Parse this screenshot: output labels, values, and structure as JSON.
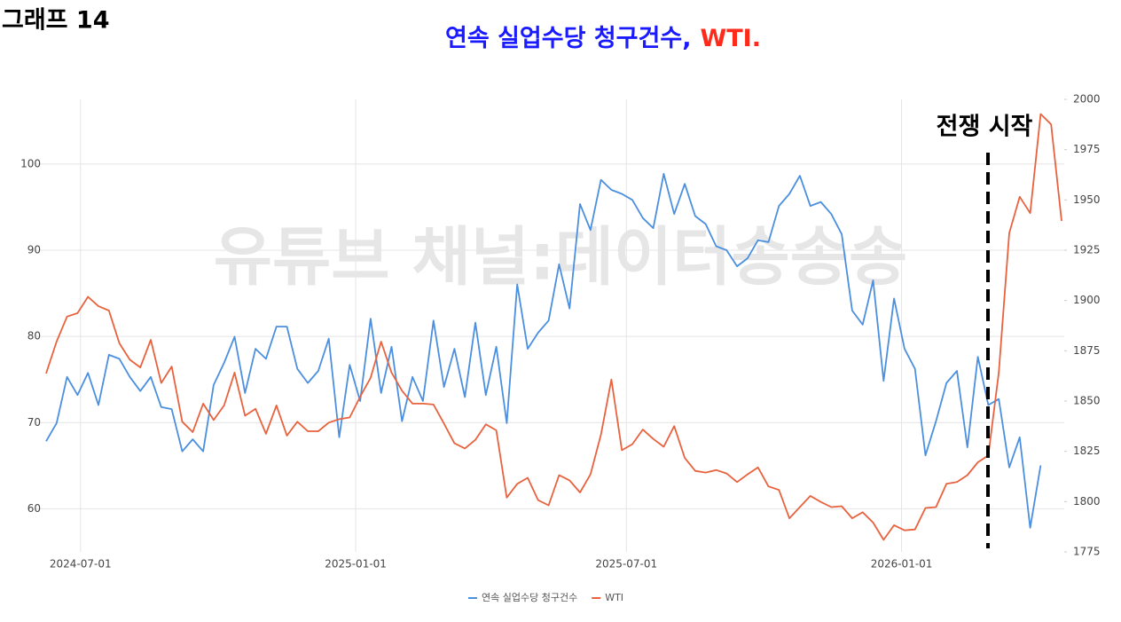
{
  "header": "그래프 14",
  "watermark": "유튜브 채널:데이터송송송",
  "annotation": "전쟁 시작",
  "chart_data": {
    "type": "line",
    "title": [
      {
        "text": "연속 실업수당 청구건수,",
        "color": "#1a1aff"
      },
      {
        "text": "WTI.",
        "color": "#ff2a1a"
      }
    ],
    "x": [
      "2024-06-08",
      "2024-06-15",
      "2024-06-22",
      "2024-06-29",
      "2024-07-06",
      "2024-07-13",
      "2024-07-20",
      "2024-07-27",
      "2024-08-03",
      "2024-08-10",
      "2024-08-17",
      "2024-08-24",
      "2024-08-31",
      "2024-09-07",
      "2024-09-14",
      "2024-09-21",
      "2024-09-28",
      "2024-10-05",
      "2024-10-12",
      "2024-10-19",
      "2024-10-26",
      "2024-11-02",
      "2024-11-09",
      "2024-11-16",
      "2024-11-23",
      "2024-11-30",
      "2024-12-07",
      "2024-12-14",
      "2024-12-21",
      "2024-12-28",
      "2025-01-04",
      "2025-01-11",
      "2025-01-18",
      "2025-01-25",
      "2025-02-01",
      "2025-02-08",
      "2025-02-15",
      "2025-02-22",
      "2025-03-01",
      "2025-03-08",
      "2025-03-15",
      "2025-03-22",
      "2025-03-29",
      "2025-04-05",
      "2025-04-12",
      "2025-04-19",
      "2025-04-26",
      "2025-05-03",
      "2025-05-10",
      "2025-05-17",
      "2025-05-24",
      "2025-05-31",
      "2025-06-07",
      "2025-06-14",
      "2025-06-21",
      "2025-06-28",
      "2025-07-05",
      "2025-07-12",
      "2025-07-19",
      "2025-07-26",
      "2025-08-02",
      "2025-08-09",
      "2025-08-16",
      "2025-08-23",
      "2025-08-30",
      "2025-09-06",
      "2025-09-13",
      "2025-09-20",
      "2025-09-27",
      "2025-10-04",
      "2025-10-11",
      "2025-10-18",
      "2025-10-25",
      "2025-11-01",
      "2025-11-08",
      "2025-11-15",
      "2025-11-22",
      "2025-11-29",
      "2025-12-06",
      "2025-12-13",
      "2025-12-20",
      "2025-12-27",
      "2026-01-03",
      "2026-01-10",
      "2026-01-17",
      "2026-01-24",
      "2026-01-31",
      "2026-02-07",
      "2026-02-14",
      "2026-02-21",
      "2026-02-28",
      "2026-03-07",
      "2026-03-14",
      "2026-03-21",
      "2026-03-28",
      "2026-04-04",
      "2026-04-11",
      "2026-04-18"
    ],
    "series": [
      {
        "name": "연속 실업수당 청구건수",
        "color": "#4a8fe0",
        "axis": "y2",
        "values": [
          1830,
          1839,
          1862,
          1853,
          1864,
          1848,
          1873,
          1871,
          1862,
          1855,
          1862,
          1847,
          1846,
          1825,
          1831,
          1825,
          1858,
          1869,
          1882,
          1854,
          1876,
          1871,
          1887,
          1887,
          1866,
          1859,
          1865,
          1881,
          1832,
          1868,
          1850,
          1891,
          1854,
          1877,
          1840,
          1862,
          1850,
          1890,
          1857,
          1876,
          1852,
          1889,
          1853,
          1877,
          1839,
          1908,
          1876,
          1884,
          1890,
          1918,
          1896,
          1948,
          1935,
          1960,
          1955,
          1953,
          1950,
          1941,
          1936,
          1963,
          1943,
          1958,
          1942,
          1938,
          1927,
          1925,
          1917,
          1921,
          1930,
          1929,
          1947,
          1953,
          1962,
          1947,
          1949,
          1943,
          1933,
          1895,
          1888,
          1910,
          1860,
          1901,
          1876,
          1866,
          1823,
          1840,
          1859,
          1865,
          1827,
          1872,
          1848,
          1851,
          1817,
          1832,
          1787,
          1818,
          null,
          null
        ]
      },
      {
        "name": "WTI",
        "color": "#e8623e",
        "values": [
          75.7,
          79.4,
          82.3,
          82.7,
          84.6,
          83.5,
          83,
          79.2,
          77.3,
          76.4,
          79.6,
          74.6,
          76.5,
          70.1,
          68.9,
          72.2,
          70.3,
          72,
          75.8,
          70.8,
          71.6,
          68.7,
          72,
          68.5,
          70.1,
          69,
          69,
          70,
          70.4,
          70.6,
          73,
          75.2,
          79.4,
          75.8,
          73.7,
          72.2,
          72.2,
          72.1,
          69.9,
          67.6,
          67,
          68,
          69.8,
          69.1,
          61.3,
          62.9,
          63.6,
          61,
          60.4,
          63.9,
          63.3,
          61.9,
          64,
          68.6,
          75,
          66.8,
          67.5,
          69.2,
          68.1,
          67.2,
          69.6,
          65.9,
          64.4,
          64.2,
          64.5,
          64.1,
          63.1,
          64,
          64.8,
          62.6,
          62.2,
          58.9,
          60.2,
          61.5,
          60.8,
          60.2,
          60.3,
          58.9,
          59.6,
          58.4,
          56.4,
          58.1,
          57.5,
          57.6,
          60.1,
          60.2,
          62.9,
          63.1,
          63.9,
          65.4,
          66.2,
          75.8,
          92,
          96.2,
          94.3,
          105.8,
          104.6,
          93.4
        ]
      }
    ],
    "xlim": [
      "2024-06-08",
      "2026-04-18"
    ],
    "xticks": [
      "2024-07-01",
      "2025-01-01",
      "2025-07-01",
      "2026-01-01"
    ],
    "ylim": [
      55,
      107.5
    ],
    "yticks": [
      60,
      70,
      80,
      90,
      100
    ],
    "y2lim": [
      1775,
      2000
    ],
    "y2ticks": [
      1775,
      1800,
      1825,
      1850,
      1875,
      1900,
      1925,
      1950,
      1975,
      2000
    ],
    "grid": true
  }
}
